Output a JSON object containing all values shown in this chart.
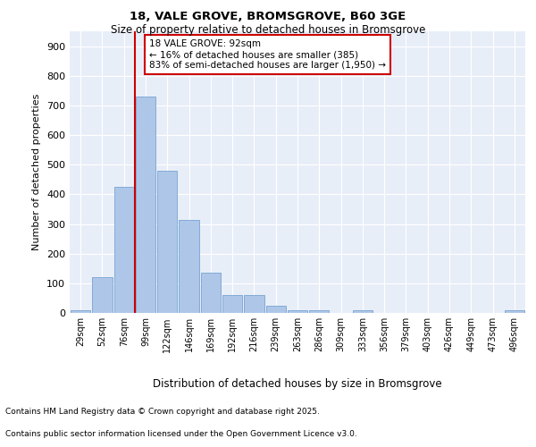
{
  "title1": "18, VALE GROVE, BROMSGROVE, B60 3GE",
  "title2": "Size of property relative to detached houses in Bromsgrove",
  "xlabel": "Distribution of detached houses by size in Bromsgrove",
  "ylabel": "Number of detached properties",
  "categories": [
    "29sqm",
    "52sqm",
    "76sqm",
    "99sqm",
    "122sqm",
    "146sqm",
    "169sqm",
    "192sqm",
    "216sqm",
    "239sqm",
    "263sqm",
    "286sqm",
    "309sqm",
    "333sqm",
    "356sqm",
    "379sqm",
    "403sqm",
    "426sqm",
    "449sqm",
    "473sqm",
    "496sqm"
  ],
  "values": [
    10,
    120,
    425,
    730,
    480,
    315,
    135,
    60,
    60,
    25,
    10,
    10,
    0,
    10,
    0,
    0,
    0,
    0,
    0,
    0,
    10
  ],
  "bar_color": "#aec6e8",
  "bar_edge_color": "#6699cc",
  "vline_color": "#cc0000",
  "vline_x": 2.5,
  "annotation_text": "18 VALE GROVE: 92sqm\n← 16% of detached houses are smaller (385)\n83% of semi-detached houses are larger (1,950) →",
  "annotation_box_color": "#ffffff",
  "annotation_box_edge": "#cc0000",
  "ylim": [
    0,
    950
  ],
  "yticks": [
    0,
    100,
    200,
    300,
    400,
    500,
    600,
    700,
    800,
    900
  ],
  "footnote1": "Contains HM Land Registry data © Crown copyright and database right 2025.",
  "footnote2": "Contains public sector information licensed under the Open Government Licence v3.0.",
  "bg_color": "#e8eef8",
  "fig_bg": "#ffffff"
}
